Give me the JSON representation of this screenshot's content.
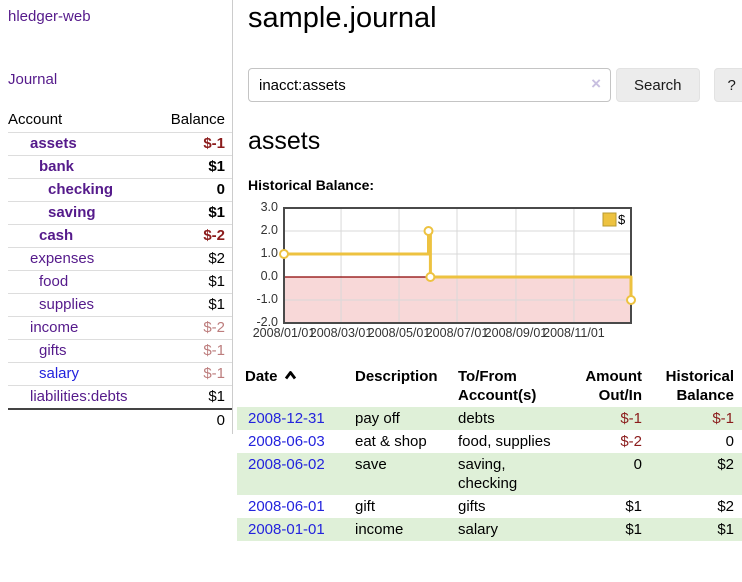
{
  "app": {
    "brand": "hledger-web",
    "nav_journal": "Journal"
  },
  "colors": {
    "accent_purple": "#551a8b",
    "link_blue": "#2323dd",
    "negative_strong": "#8b1c1c",
    "negative_soft": "#bd7d7d",
    "row_green": "#dff0d8",
    "chart_gold": "#edc240",
    "chart_negative_region": "#f8d8d8",
    "zero_line": "#8b0000"
  },
  "sidebar": {
    "accounts_header": {
      "account": "Account",
      "balance": "Balance"
    },
    "accounts": [
      {
        "name": "assets",
        "level": 1,
        "matched": true,
        "balance": "$-1",
        "balance_style": "neg-strong"
      },
      {
        "name": "bank",
        "level": 2,
        "matched": true,
        "balance": "$1",
        "balance_style": "pos"
      },
      {
        "name": "checking",
        "level": 3,
        "matched": true,
        "balance": "0",
        "balance_style": "pos"
      },
      {
        "name": "saving",
        "level": 3,
        "matched": true,
        "balance": "$1",
        "balance_style": "pos"
      },
      {
        "name": "cash",
        "level": 2,
        "matched": true,
        "balance": "$-2",
        "balance_style": "neg-strong"
      },
      {
        "name": "expenses",
        "level": 1,
        "matched": false,
        "balance": "$2",
        "balance_style": "pos"
      },
      {
        "name": "food",
        "level": 2,
        "matched": false,
        "balance": "$1",
        "balance_style": "pos"
      },
      {
        "name": "supplies",
        "level": 2,
        "matched": false,
        "balance": "$1",
        "balance_style": "pos"
      },
      {
        "name": "income",
        "level": 1,
        "matched": false,
        "balance": "$-2",
        "balance_style": "neg-soft"
      },
      {
        "name": "gifts",
        "level": 2,
        "matched": false,
        "balance": "$-1",
        "balance_style": "neg-soft"
      },
      {
        "name": "salary",
        "level": 2,
        "matched": false,
        "link_style": "blue",
        "balance": "$-1",
        "balance_style": "neg-soft"
      },
      {
        "name": "liabilities:debts",
        "level": 1,
        "matched": false,
        "balance": "$1",
        "balance_style": "pos"
      }
    ],
    "total": "0"
  },
  "header": {
    "title": "sample.journal"
  },
  "search": {
    "value": "inacct:assets",
    "clear_icon": "×",
    "button": "Search",
    "help_button": "?"
  },
  "account_page": {
    "heading": "assets",
    "chart_label": "Historical Balance:"
  },
  "chart_data": {
    "type": "line",
    "title": "Historical Balance",
    "step": true,
    "series": [
      {
        "name": "$",
        "color": "#edc240",
        "points": [
          [
            "2008-01-01",
            1
          ],
          [
            "2008-06-01",
            2
          ],
          [
            "2008-06-03",
            0
          ],
          [
            "2008-12-31",
            -1
          ]
        ]
      }
    ],
    "ylim": [
      -2,
      3
    ],
    "yticks": [
      3.0,
      2.0,
      1.0,
      0.0,
      -1.0,
      -2.0
    ],
    "xticks": [
      "2008/01/01",
      "2008/03/01",
      "2008/05/01",
      "2008/07/01",
      "2008/09/01",
      "2008/11/01"
    ],
    "xrange": [
      "2008-01-01",
      "2008-12-31"
    ],
    "grid": true,
    "legend_position": "top-right",
    "negative_region": true
  },
  "register": {
    "columns": [
      {
        "label": "Date",
        "sortable": true,
        "sort": "asc"
      },
      {
        "label": "Description"
      },
      {
        "label": "To/From\nAccount(s)"
      },
      {
        "label": "Amount\nOut/In",
        "align": "right"
      },
      {
        "label": "Historical\nBalance",
        "align": "right"
      }
    ],
    "rows": [
      {
        "date": "2008-12-31",
        "description": "pay off",
        "accounts": "debts",
        "amount": "$-1",
        "balance": "$-1"
      },
      {
        "date": "2008-06-03",
        "description": "eat & shop",
        "accounts": "food, supplies",
        "amount": "$-2",
        "balance": "0"
      },
      {
        "date": "2008-06-02",
        "description": "save",
        "accounts": "saving,\nchecking",
        "amount": "0",
        "balance": "$2"
      },
      {
        "date": "2008-06-01",
        "description": "gift",
        "accounts": "gifts",
        "amount": "$1",
        "balance": "$2"
      },
      {
        "date": "2008-01-01",
        "description": "income",
        "accounts": "salary",
        "amount": "$1",
        "balance": "$1"
      }
    ]
  }
}
